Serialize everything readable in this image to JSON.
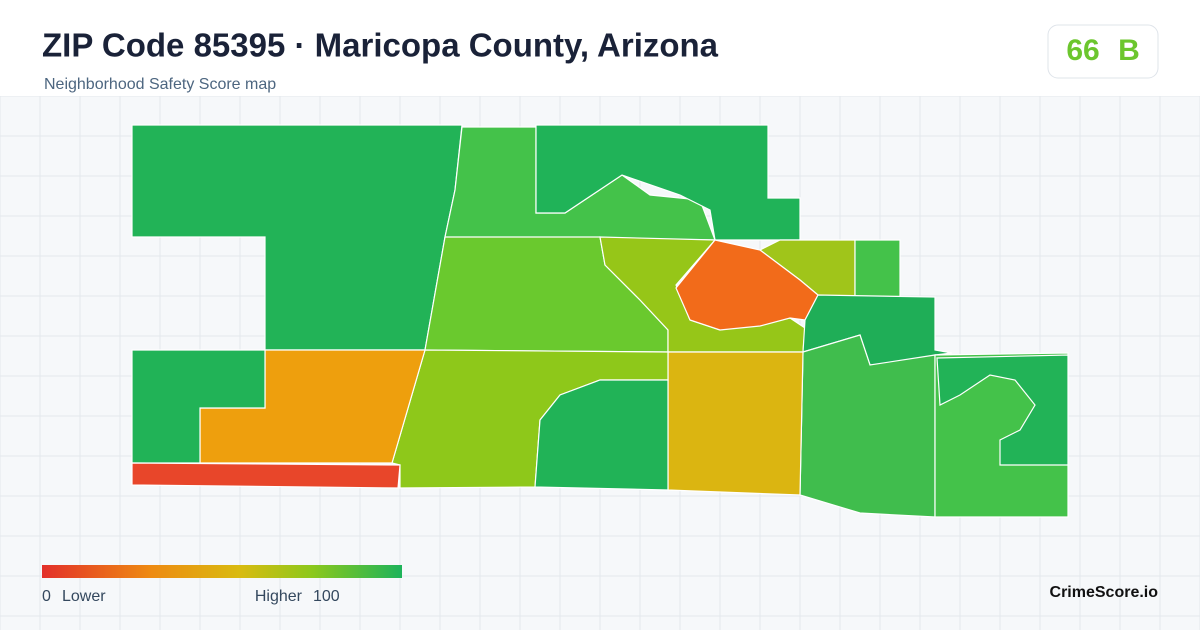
{
  "header": {
    "title": "ZIP Code 85395 · Maricopa County, Arizona",
    "subtitle": "Neighborhood Safety Score map"
  },
  "score": {
    "value": "66",
    "grade": "B"
  },
  "legend": {
    "min": "0",
    "min_label": "Lower",
    "max_label": "Higher",
    "max": "100"
  },
  "brand": "CrimeScore.io"
}
